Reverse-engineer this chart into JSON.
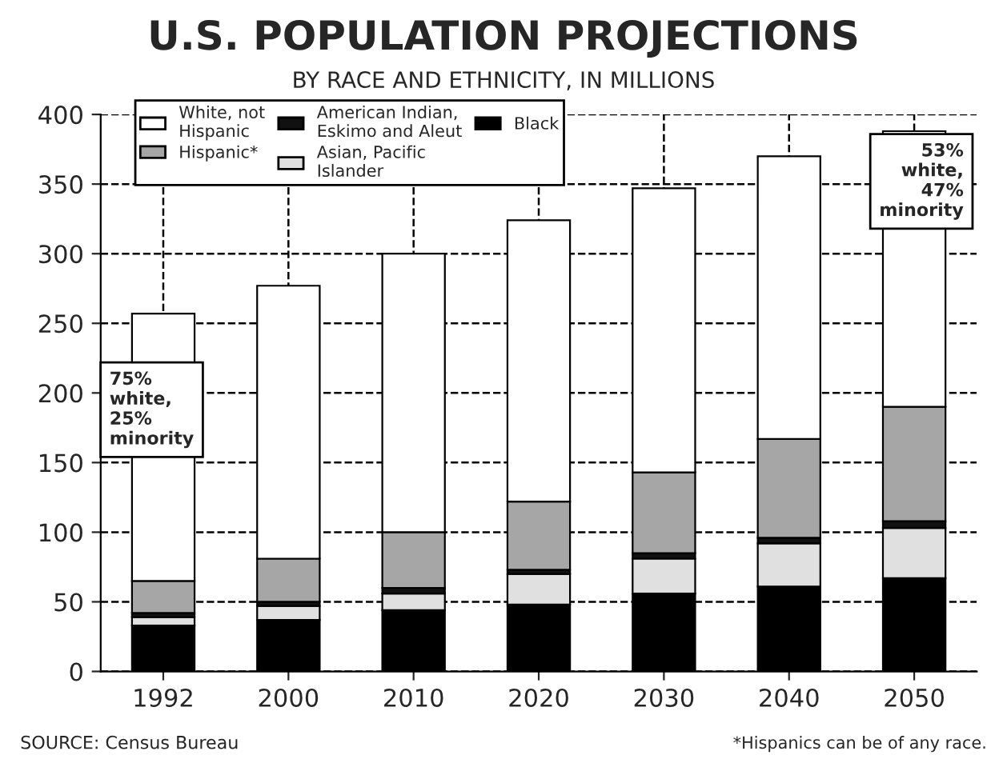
{
  "chart_data": {
    "type": "bar",
    "title": "U.S. POPULATION PROJECTIONS",
    "subtitle": "BY RACE AND ETHNICITY, IN MILLIONS",
    "categories": [
      "1992",
      "2000",
      "2010",
      "2020",
      "2030",
      "2040",
      "2050"
    ],
    "stacked": true,
    "series": [
      {
        "name": "Black",
        "color": "#000000",
        "values": [
          33,
          37,
          44,
          48,
          56,
          61,
          67
        ]
      },
      {
        "name": "Asian, Pacific Islander",
        "color": "#e0e0e0",
        "values": [
          6,
          10,
          12,
          22,
          25,
          31,
          36
        ]
      },
      {
        "name": "American Indian, Eskimo and Aleut",
        "color": "#111111",
        "values": [
          3,
          3,
          4,
          3,
          4,
          4,
          5
        ]
      },
      {
        "name": "Hispanic*",
        "color": "#a6a6a6",
        "values": [
          23,
          31,
          40,
          49,
          58,
          71,
          82
        ]
      },
      {
        "name": "White, not Hispanic",
        "color": "#ffffff",
        "values": [
          192,
          196,
          200,
          202,
          204,
          203,
          198
        ]
      }
    ],
    "ylim": [
      0,
      400
    ],
    "yticks": [
      0,
      50,
      100,
      150,
      200,
      250,
      300,
      350,
      400
    ],
    "grid": true,
    "legend": "top left",
    "annotations": [
      "75%\nwhite,\n25%\nminority",
      "53%\nwhite,\n47%\nminority",
      "SOURCE: Census Bureau",
      "*Hispanics can be of any race."
    ]
  }
}
